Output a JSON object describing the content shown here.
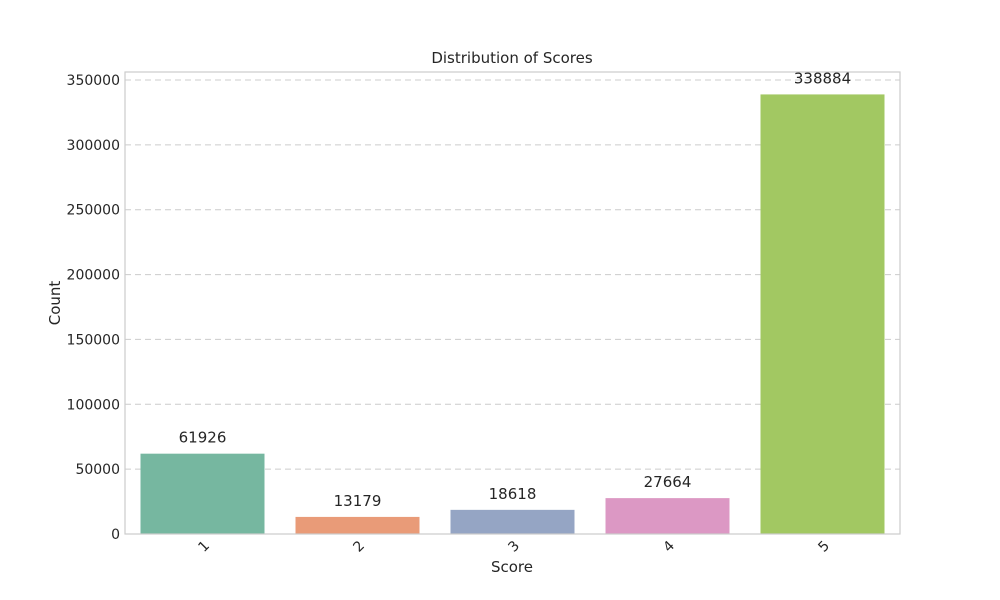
{
  "chart_data": {
    "type": "bar",
    "title": "Distribution of Scores",
    "xlabel": "Score",
    "ylabel": "Count",
    "categories": [
      "1",
      "2",
      "3",
      "4",
      "5"
    ],
    "values": [
      61926,
      13179,
      18618,
      27664,
      338884
    ],
    "data_labels": [
      "61926",
      "13179",
      "18618",
      "27664",
      "338884"
    ],
    "colors": [
      "#76b7a0",
      "#e99b78",
      "#95a5c4",
      "#dc98c4",
      "#a2c862"
    ],
    "ylim": [
      0,
      350000
    ],
    "yticks": [
      0,
      50000,
      100000,
      150000,
      200000,
      250000,
      300000,
      350000
    ],
    "ytick_labels": [
      "0",
      "50000",
      "100000",
      "150000",
      "200000",
      "250000",
      "300000",
      "350000"
    ],
    "grid": "y-dashed",
    "xtick_rotation": 45
  }
}
